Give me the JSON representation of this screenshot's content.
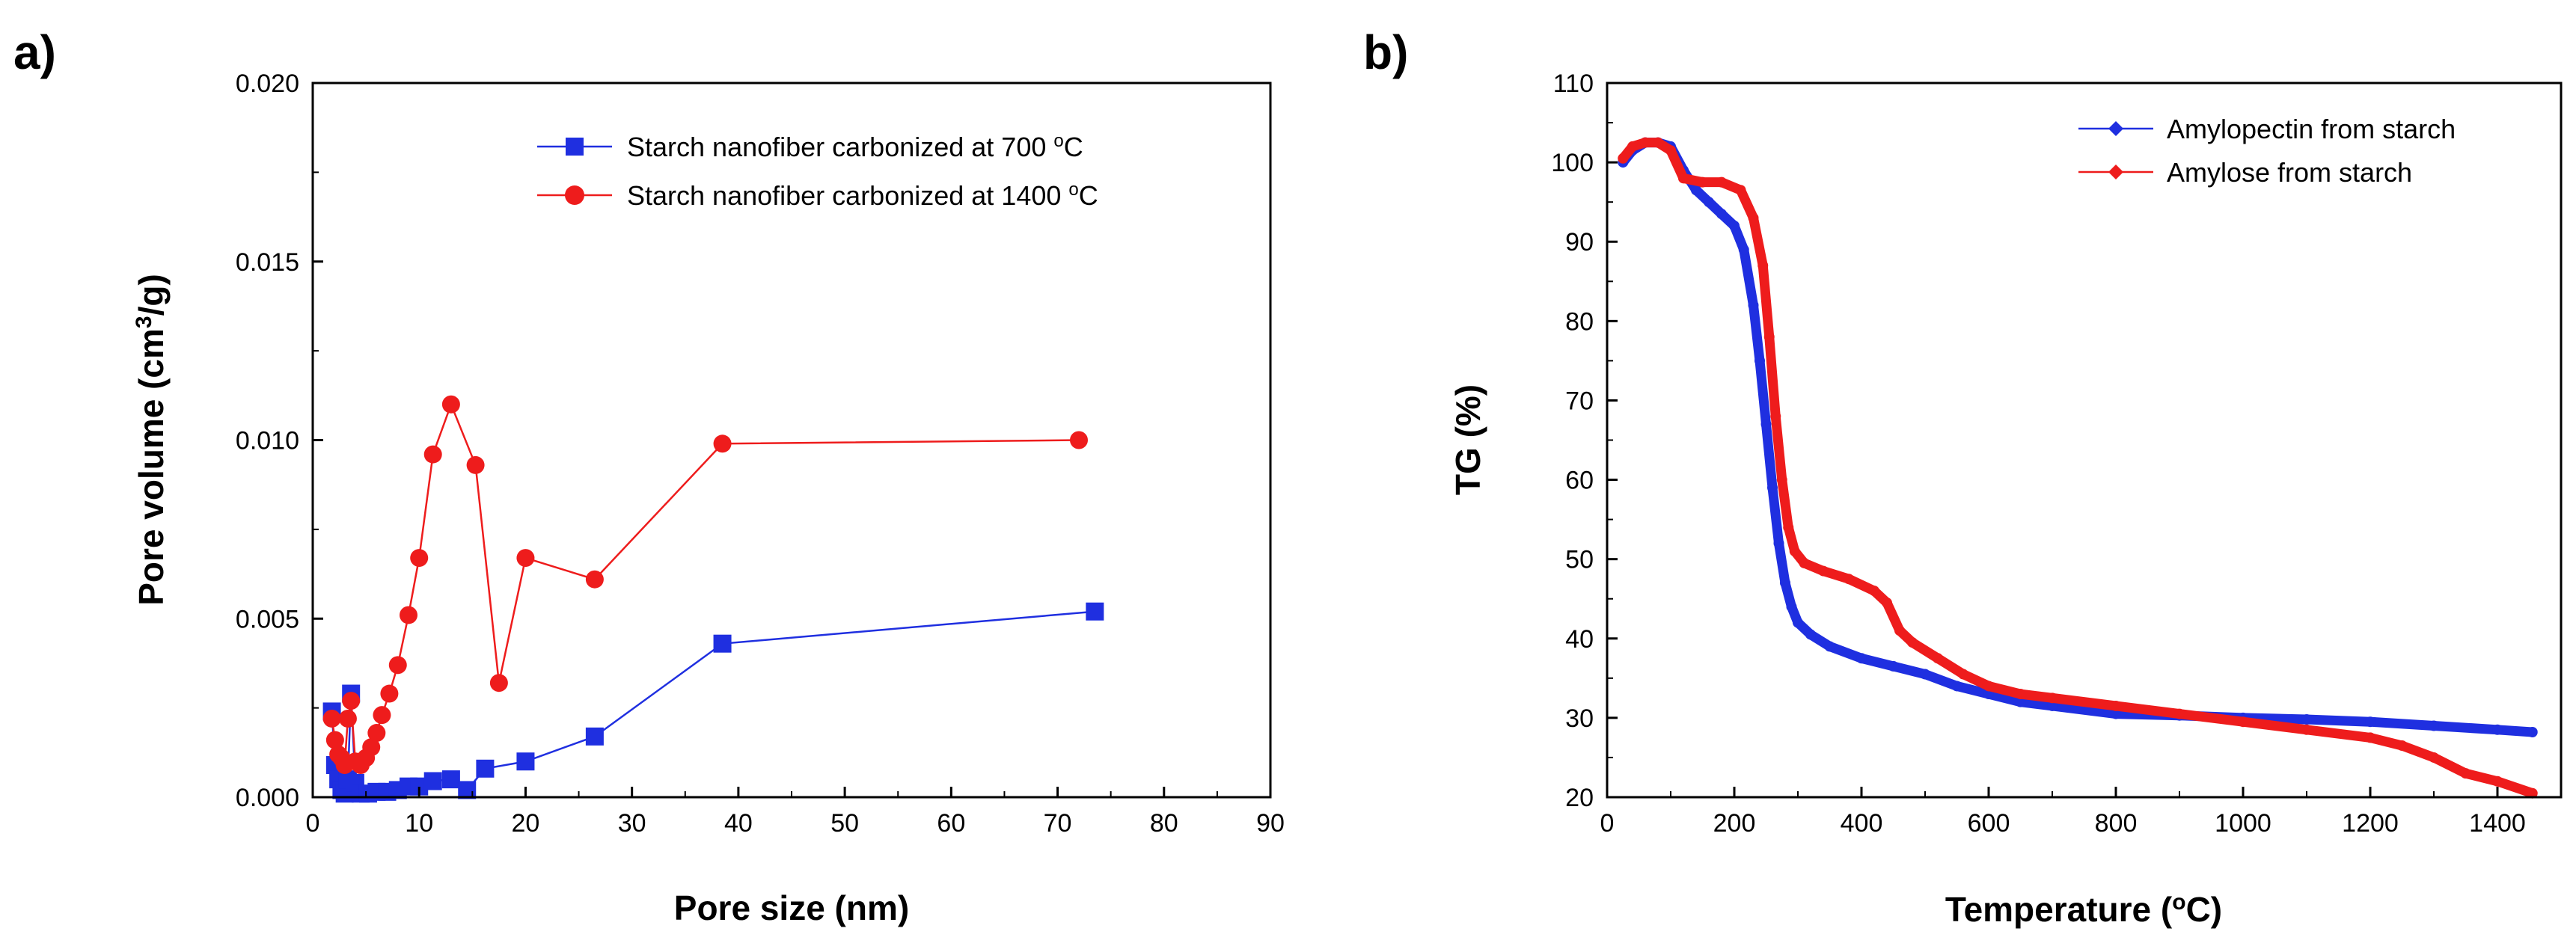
{
  "chart_data": [
    {
      "panel_label": "a)",
      "type": "line",
      "title": "",
      "xlabel": "Pore size (nm)",
      "ylabel_parts": [
        "Pore volume (cm",
        "3",
        "/g)"
      ],
      "xlim": [
        0,
        90
      ],
      "ylim": [
        0,
        0.02
      ],
      "x_ticks": [
        0,
        10,
        20,
        30,
        40,
        50,
        60,
        70,
        80,
        90
      ],
      "x_tick_labels": [
        "0",
        "10",
        "20",
        "30",
        "40",
        "50",
        "60",
        "70",
        "80",
        "90"
      ],
      "y_ticks": [
        0,
        0.005,
        0.01,
        0.015,
        0.02
      ],
      "y_tick_labels": [
        "0.000",
        "0.005",
        "0.010",
        "0.015",
        "0.020"
      ],
      "grid": false,
      "legend_position": "top-right",
      "series": [
        {
          "name": "Starch nanofiber carbonized at 700 °C",
          "legend_parts": [
            "Starch nanofiber carbonized at 700 ",
            "o",
            "C"
          ],
          "color": "#1f2fe0",
          "marker": "square",
          "x": [
            1.8,
            2.1,
            2.4,
            2.7,
            3.0,
            3.3,
            3.6,
            4.0,
            4.5,
            5.2,
            6.0,
            7.0,
            8.0,
            9.0,
            10.0,
            11.3,
            13.0,
            14.5,
            16.2,
            20.0,
            26.5,
            38.5,
            73.5
          ],
          "y": [
            0.0024,
            0.0009,
            0.0005,
            0.0002,
            0.0001,
            0.0005,
            0.0029,
            0.0004,
            0.0001,
            0.0001,
            0.00015,
            0.00015,
            0.0002,
            0.0003,
            0.0003,
            0.00045,
            0.0005,
            0.0002,
            0.0008,
            0.001,
            0.0017,
            0.0043,
            0.0052
          ]
        },
        {
          "name": "Starch nanofiber carbonized at 1400 °C",
          "legend_parts": [
            "Starch nanofiber carbonized at 1400 ",
            "o",
            "C"
          ],
          "color": "#ee1c1c",
          "marker": "circle",
          "x": [
            1.8,
            2.1,
            2.4,
            2.7,
            3.0,
            3.3,
            3.6,
            4.0,
            4.5,
            5.0,
            5.5,
            6.0,
            6.5,
            7.2,
            8.0,
            9.0,
            10.0,
            11.3,
            13.0,
            15.3,
            17.5,
            20.0,
            26.5,
            38.5,
            72.0
          ],
          "y": [
            0.0022,
            0.0016,
            0.0012,
            0.0011,
            0.0009,
            0.0022,
            0.0027,
            0.001,
            0.0009,
            0.0011,
            0.0014,
            0.0018,
            0.0023,
            0.0029,
            0.0037,
            0.0051,
            0.0067,
            0.0096,
            0.011,
            0.0093,
            0.0032,
            0.0067,
            0.0061,
            0.0099,
            0.01
          ]
        }
      ]
    },
    {
      "panel_label": "b)",
      "type": "line",
      "title": "",
      "xlabel_parts": [
        "Temperature (",
        "o",
        "C)"
      ],
      "ylabel": "TG (%)",
      "xlim": [
        0,
        1500
      ],
      "ylim": [
        20,
        110
      ],
      "x_ticks": [
        0,
        200,
        400,
        600,
        800,
        1000,
        1200,
        1400
      ],
      "x_tick_labels": [
        "0",
        "200",
        "400",
        "600",
        "800",
        "1000",
        "1200",
        "1400"
      ],
      "y_ticks": [
        20,
        30,
        40,
        50,
        60,
        70,
        80,
        90,
        100,
        110
      ],
      "y_tick_labels": [
        "20",
        "30",
        "40",
        "50",
        "60",
        "70",
        "80",
        "90",
        "100",
        "110"
      ],
      "grid": false,
      "legend_position": "top-right",
      "series": [
        {
          "name": "Amylopectin from starch",
          "color": "#1f2fe0",
          "marker": "diamond",
          "x": [
            25,
            40,
            60,
            80,
            100,
            120,
            140,
            160,
            180,
            200,
            215,
            230,
            240,
            250,
            260,
            270,
            280,
            290,
            300,
            320,
            350,
            400,
            450,
            500,
            550,
            600,
            650,
            700,
            800,
            900,
            1000,
            1100,
            1200,
            1300,
            1400,
            1455
          ],
          "y": [
            100,
            101.5,
            102.5,
            102.5,
            102,
            99,
            96.5,
            95,
            93.5,
            92,
            89,
            82,
            75,
            67,
            59,
            52,
            47,
            44,
            42,
            40.5,
            39,
            37.5,
            36.5,
            35.5,
            34,
            33,
            32,
            31.5,
            30.5,
            30.3,
            30,
            29.8,
            29.5,
            29,
            28.5,
            28.2
          ]
        },
        {
          "name": "Amylose from starch",
          "color": "#ee1c1c",
          "marker": "diamond",
          "x": [
            25,
            40,
            60,
            80,
            100,
            120,
            150,
            180,
            210,
            230,
            245,
            255,
            265,
            275,
            285,
            295,
            310,
            340,
            380,
            420,
            440,
            460,
            480,
            520,
            560,
            600,
            650,
            700,
            800,
            900,
            1000,
            1100,
            1200,
            1250,
            1300,
            1350,
            1400,
            1455
          ],
          "y": [
            100.5,
            102,
            102.5,
            102.5,
            101.5,
            98,
            97.5,
            97.5,
            96.5,
            93,
            87,
            78,
            68,
            60,
            54,
            51,
            49.5,
            48.5,
            47.5,
            46,
            44.5,
            41,
            39.5,
            37.5,
            35.5,
            34,
            33,
            32.5,
            31.5,
            30.5,
            29.5,
            28.5,
            27.5,
            26.5,
            25,
            23,
            22,
            20.5
          ]
        }
      ]
    }
  ]
}
